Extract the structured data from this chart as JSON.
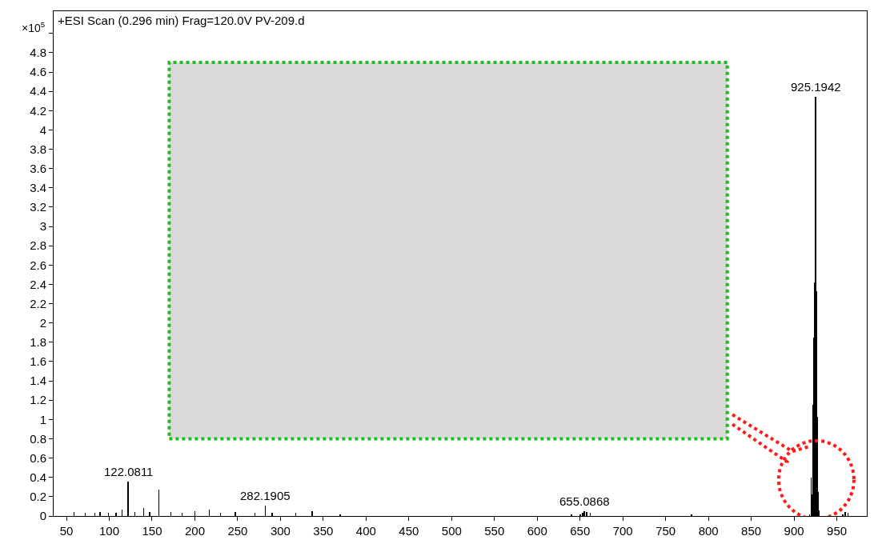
{
  "chart_data": {
    "type": "bar",
    "title": "+ESI Scan (0.296 min) Frag=120.0V PV-209.d",
    "ylabel": "×10$^{5}$",
    "series": [
      {
        "color": "#000000",
        "x": [
          59,
          72,
          83,
          89,
          99,
          108,
          115,
          122.0811,
          130,
          140,
          147,
          158,
          172,
          185,
          200,
          217,
          230,
          247,
          270,
          282.1905,
          290,
          318,
          337,
          370,
          640,
          650,
          653,
          655.0868,
          658,
          662,
          780,
          918,
          920,
          921,
          922,
          923,
          924,
          925.1942,
          926,
          927,
          928,
          929,
          957,
          960,
          963
        ],
        "values": [
          0.04,
          0.03,
          0.03,
          0.04,
          0.03,
          0.03,
          0.07,
          0.36,
          0.04,
          0.08,
          0.04,
          0.27,
          0.04,
          0.03,
          0.05,
          0.07,
          0.03,
          0.04,
          0.03,
          0.11,
          0.03,
          0.03,
          0.05,
          0.02,
          0.01,
          0.02,
          0.03,
          0.05,
          0.04,
          0.03,
          0.01,
          0.01,
          0.4,
          0.22,
          1.15,
          1.85,
          2.42,
          4.34,
          2.33,
          1.03,
          0.25,
          0.06,
          0.02,
          0.04,
          0.03
        ]
      }
    ],
    "annotations": [
      {
        "text": "122.0811",
        "x": 122.0811,
        "y": 0.36
      },
      {
        "text": "282.1905",
        "x": 282.1905,
        "y": 0.11
      },
      {
        "text": "655.0868",
        "x": 655.0868,
        "y": 0.05
      },
      {
        "text": "925.1942",
        "x": 925.1942,
        "y": 4.34
      }
    ],
    "xlim": [
      35,
      985
    ],
    "ylim": [
      0,
      5.23
    ],
    "xticks": [
      50,
      100,
      150,
      200,
      250,
      300,
      350,
      400,
      450,
      500,
      550,
      600,
      650,
      700,
      750,
      800,
      850,
      900,
      950
    ],
    "yticks": [
      0,
      0.2,
      0.4,
      0.6,
      0.8,
      1,
      1.2,
      1.4,
      1.6,
      1.8,
      2,
      2.2,
      2.4,
      2.6,
      2.8,
      3,
      3.2,
      3.4,
      3.6,
      3.8,
      4,
      4.2,
      4.4,
      4.6,
      4.8,
      {
        "value": 5,
        "label": null
      }
    ],
    "grid": false
  }
}
